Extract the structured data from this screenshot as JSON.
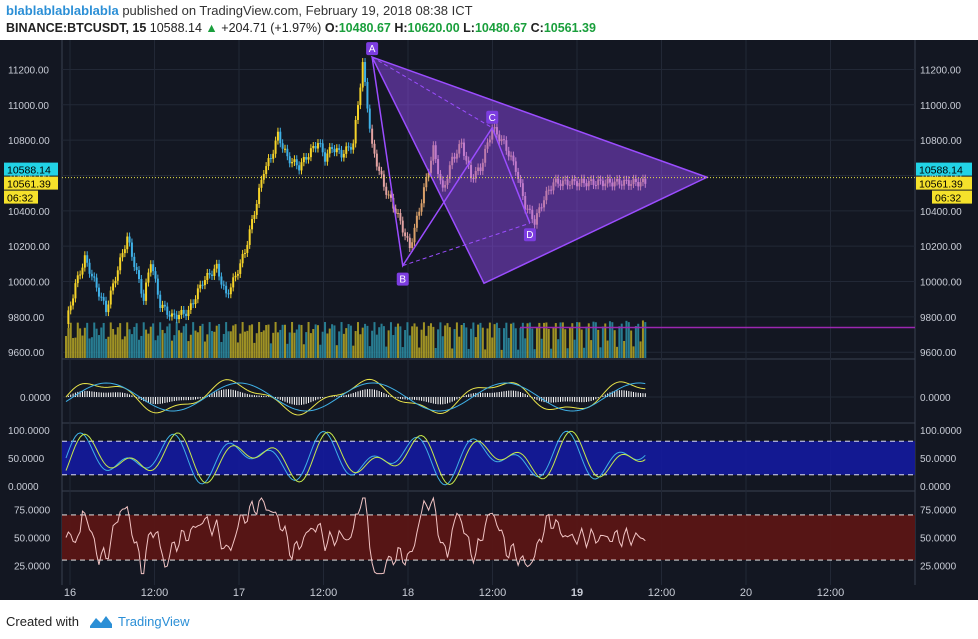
{
  "header": {
    "author": "blablablablablabla",
    "published_text": "published on TradingView.com, February 19, 2018 08:38 ICT",
    "symbol": "BINANCE:BTCUSDT, 15",
    "last_price": "10588.14",
    "change": "+204.71 (+1.97%)",
    "ohlc": {
      "O": "10480.67",
      "H": "10620.00",
      "L": "10480.67",
      "C": "10561.39"
    }
  },
  "footer": {
    "created_with": "Created with",
    "brand": "TradingView"
  },
  "colors": {
    "background": "#131722",
    "grid": "#222836",
    "up": "#f5d329",
    "down": "#3fb0e6",
    "pattern": "#9b4dff",
    "hline": "#9c27b0",
    "stoch_band": "#141a9e",
    "rsi_band": "#5a1515"
  },
  "chart_data": {
    "type": "line",
    "main": {
      "y_ticks": [
        "11200.00",
        "11000.00",
        "10800.00",
        "10600.00",
        "10400.00",
        "10200.00",
        "10000.00",
        "9800.00",
        "9600.00"
      ],
      "ylim": [
        9590,
        11310
      ],
      "price_labels": {
        "last": "10588.14",
        "close": "10561.39",
        "countdown": "06:32"
      },
      "x_labels": [
        "16",
        "12:00",
        "17",
        "12:00",
        "18",
        "12:00",
        "19",
        "12:00",
        "20",
        "12:00"
      ],
      "x_bold_label": "19",
      "series": [
        {
          "x": [
            0,
            4,
            8,
            12,
            17,
            22,
            26,
            30,
            33,
            36,
            40,
            45,
            52,
            58,
            64,
            68,
            72,
            76,
            81,
            84,
            87,
            90,
            94,
            99,
            103,
            107,
            110,
            113,
            117,
            122,
            126,
            130,
            135,
            141,
            146,
            151,
            156,
            160,
            164,
            168,
            172,
            176,
            181,
            186,
            191,
            195,
            199,
            203,
            207,
            211,
            215,
            219,
            223,
            227,
            231,
            235,
            239,
            243,
            247
          ],
          "values": [
            9760,
            9980,
            10130,
            10000,
            9840,
            10070,
            10250,
            10050,
            9900,
            10120,
            9870,
            9800,
            9830,
            10000,
            10080,
            9920,
            10030,
            10170,
            10450,
            10630,
            10700,
            10830,
            10700,
            10650,
            10720,
            10790,
            10700,
            10760,
            10720,
            10780,
            11230,
            10760,
            10540,
            10370,
            10190,
            10460,
            10750,
            10510,
            10690,
            10780,
            10590,
            10640,
            10870,
            10780,
            10640,
            10430,
            10340,
            10470,
            10560,
            10560,
            10560,
            10560,
            10560,
            10560,
            10560,
            10560,
            10560,
            10560,
            10561
          ]
        }
      ],
      "hline_value": 9740,
      "pattern_points": {
        "A": {
          "x": 130,
          "y": 11270
        },
        "B": {
          "x": 143,
          "y": 10090
        },
        "C": {
          "x": 181,
          "y": 10870
        },
        "D": {
          "x": 197,
          "y": 10330
        }
      },
      "pattern_labels": [
        "A",
        "B",
        "C",
        "D"
      ]
    },
    "macd": {
      "y_tick": "0.0000"
    },
    "stoch": {
      "y_ticks": [
        "100.0000",
        "50.0000",
        "0.0000"
      ]
    },
    "rsi": {
      "y_ticks": [
        "75.0000",
        "50.0000",
        "25.0000"
      ]
    }
  }
}
